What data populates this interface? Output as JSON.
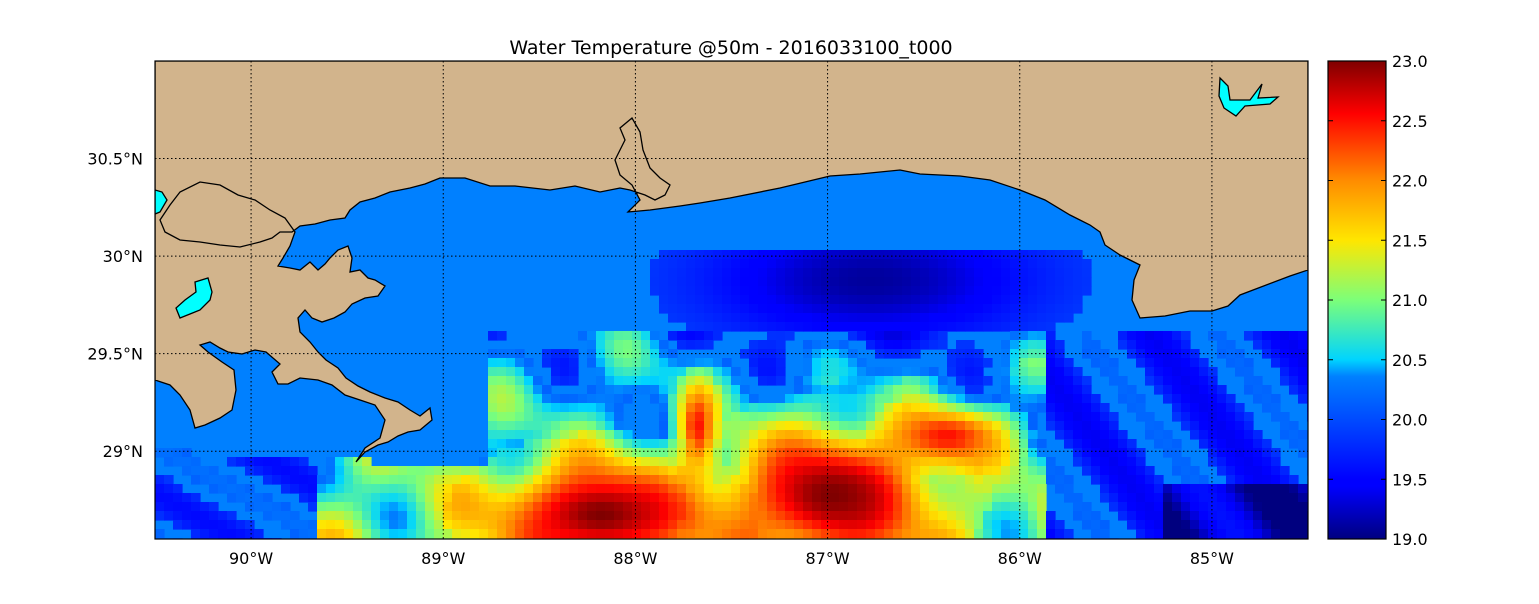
{
  "title": "Water Temperature @50m - 2016033100_t000",
  "colors": {
    "land": "#D2B48C",
    "water_fill": "#0080FF",
    "lake": "#00FFFF",
    "coastline": "#000000",
    "gridline": "#000000"
  },
  "chart_data": {
    "type": "heatmap",
    "title": "Water Temperature @50m - 2016033100_t000",
    "projection": "cylindrical lon/lat",
    "xlim": [
      -90.5,
      -84.5
    ],
    "ylim": [
      28.55,
      31.0
    ],
    "x_ticks": [
      {
        "value": -90,
        "label": "90°W"
      },
      {
        "value": -89,
        "label": "89°W"
      },
      {
        "value": -88,
        "label": "88°W"
      },
      {
        "value": -87,
        "label": "87°W"
      },
      {
        "value": -86,
        "label": "86°W"
      },
      {
        "value": -85,
        "label": "85°W"
      }
    ],
    "y_ticks": [
      {
        "value": 29.0,
        "label": "29°N"
      },
      {
        "value": 29.5,
        "label": "29.5°N"
      },
      {
        "value": 30.0,
        "label": "30°N"
      },
      {
        "value": 30.5,
        "label": "30.5°N"
      }
    ],
    "grid": true,
    "colormap": "jet",
    "colorbar": {
      "min": 19.0,
      "max": 23.0,
      "ticks": [
        {
          "value": 19.0,
          "label": "19.0"
        },
        {
          "value": 19.5,
          "label": "19.5"
        },
        {
          "value": 20.0,
          "label": "20.0"
        },
        {
          "value": 20.5,
          "label": "20.5"
        },
        {
          "value": 21.0,
          "label": "21.0"
        },
        {
          "value": 21.5,
          "label": "21.5"
        },
        {
          "value": 22.0,
          "label": "22.0"
        },
        {
          "value": 22.5,
          "label": "22.5"
        },
        {
          "value": 23.0,
          "label": "23.0"
        }
      ]
    },
    "field_features": [
      {
        "kind": "warm",
        "lon": -88.2,
        "lat": 28.7,
        "rx": 0.55,
        "ry": 0.28,
        "value": 23.0
      },
      {
        "kind": "warm",
        "lon": -87.0,
        "lat": 28.8,
        "rx": 0.55,
        "ry": 0.35,
        "value": 23.0
      },
      {
        "kind": "warm",
        "lon": -86.4,
        "lat": 29.1,
        "rx": 0.3,
        "ry": 0.15,
        "value": 22.5
      },
      {
        "kind": "warm",
        "lon": -87.7,
        "lat": 29.15,
        "rx": 0.1,
        "ry": 0.22,
        "value": 22.5
      },
      {
        "kind": "cool",
        "lon": -86.8,
        "lat": 29.9,
        "rx": 0.9,
        "ry": 0.35,
        "value": 19.1
      }
    ],
    "lakes": [
      {
        "name": "",
        "lon": -89.8,
        "lat": 29.75
      },
      {
        "name": "",
        "lon": -84.9,
        "lat": 30.8
      }
    ]
  }
}
